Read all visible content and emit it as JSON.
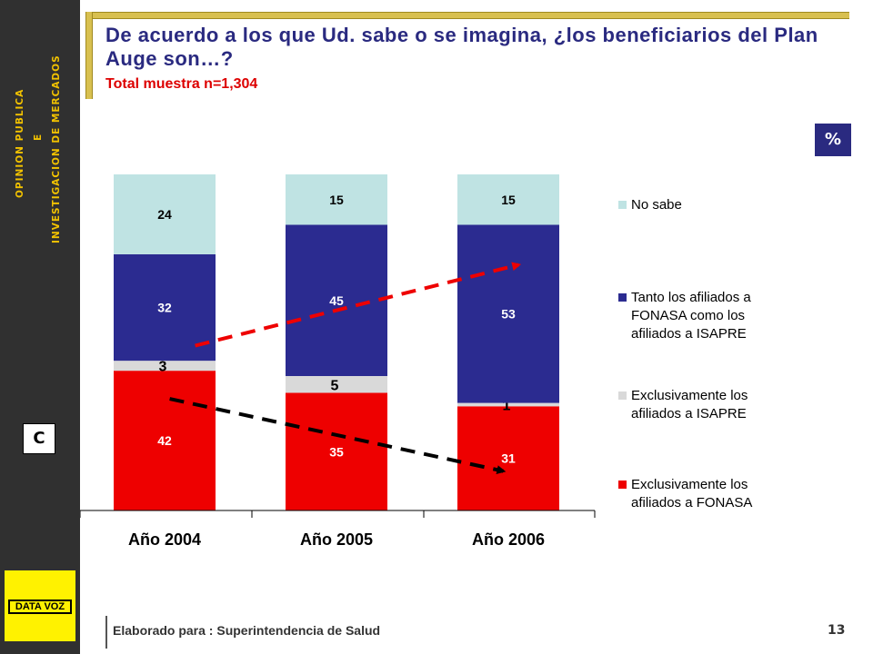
{
  "sidebar": {
    "line1": "OPINION PUBLICA",
    "line2": "E",
    "line3": "INVESTIGACION DE MERCADOS",
    "badge": "C",
    "logo_text": "DATA VOZ"
  },
  "header": {
    "title": "De acuerdo a los que Ud. sabe o se imagina, ¿los beneficiarios del Plan Auge son…?",
    "subtitle": "Total muestra n=1,304",
    "unit_badge": "%"
  },
  "footer": {
    "text": "Elaborado para : Superintendencia de Salud",
    "page": "13"
  },
  "colors": {
    "accent_blue": "#2a2a80",
    "red": "#ee0000",
    "navy": "#2b2b90",
    "light_gray": "#d9d9d9",
    "light_teal": "#bfe3e3"
  },
  "chart_data": {
    "type": "bar",
    "stacked": true,
    "title": "De acuerdo a los que Ud. sabe o se imagina, ¿los beneficiarios del Plan Auge son…?",
    "categories": [
      "Año 2004",
      "Año 2005",
      "Año 2006"
    ],
    "series": [
      {
        "name": "Exclusivamente los afiliados a FONASA",
        "values": [
          42,
          35,
          31
        ],
        "color": "#ee0000",
        "label_color": "#ffffff"
      },
      {
        "name": "Exclusivamente los afiliados a ISAPRE",
        "values": [
          3,
          5,
          1
        ],
        "color": "#d9d9d9",
        "label_color": "#000000"
      },
      {
        "name": "Tanto los afiliados a FONASA como los afiliados a ISAPRE",
        "values": [
          32,
          45,
          53
        ],
        "color": "#2b2b90",
        "label_color": "#ffffff"
      },
      {
        "name": "No sabe",
        "values": [
          24,
          15,
          15
        ],
        "color": "#bfe3e3",
        "label_color": "#000000"
      }
    ],
    "legend": [
      {
        "lines": [
          "No sabe"
        ],
        "color": "#bfe3e3"
      },
      {
        "lines": [
          "Tanto los afiliados a",
          "FONASA como los",
          "afiliados a ISAPRE"
        ],
        "color": "#2b2b90"
      },
      {
        "lines": [
          "Exclusivamente los",
          "afiliados a ISAPRE"
        ],
        "color": "#d9d9d9"
      },
      {
        "lines": [
          "Exclusivamente los",
          "afiliados a FONASA"
        ],
        "color": "#ee0000"
      }
    ],
    "legend_position": "right",
    "annotations": [
      {
        "type": "trend-arrow",
        "series": "Tanto los afiliados a FONASA como los afiliados a ISAPRE",
        "direction": "up",
        "color": "#ee0000"
      },
      {
        "type": "trend-arrow",
        "series": "Exclusivamente los afiliados a FONASA",
        "direction": "down",
        "color": "#000000"
      }
    ],
    "ylim": [
      0,
      100
    ],
    "xlabel": "",
    "ylabel": ""
  }
}
